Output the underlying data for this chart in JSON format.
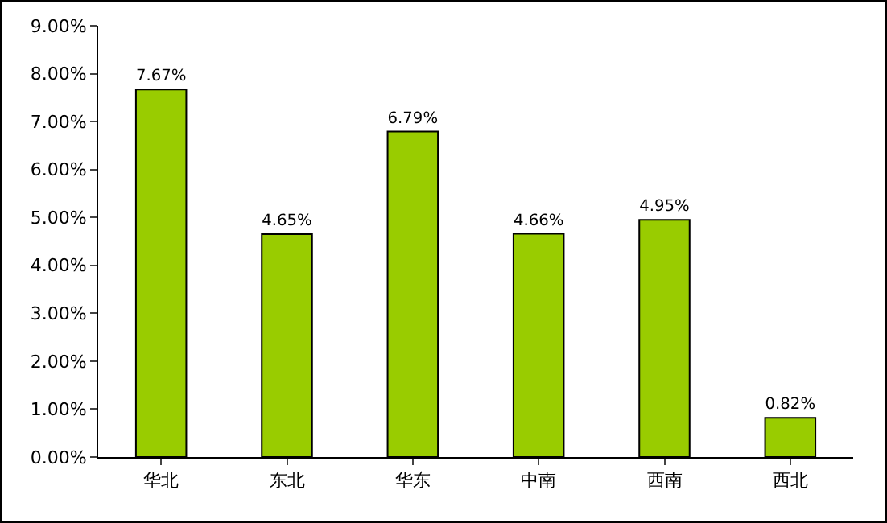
{
  "chart_data": {
    "type": "bar",
    "categories": [
      "华北",
      "东北",
      "华东",
      "中南",
      "西南",
      "西北"
    ],
    "values": [
      7.67,
      4.65,
      6.79,
      4.66,
      4.95,
      0.82
    ],
    "value_labels": [
      "7.67%",
      "4.65%",
      "6.79%",
      "4.66%",
      "4.95%",
      "0.82%"
    ],
    "color": "#99cc00",
    "ylim": [
      0,
      9
    ],
    "yticks": [
      {
        "value": 0,
        "label": "0.00%"
      },
      {
        "value": 1,
        "label": "1.00%"
      },
      {
        "value": 2,
        "label": "2.00%"
      },
      {
        "value": 3,
        "label": "3.00%"
      },
      {
        "value": 4,
        "label": "4.00%"
      },
      {
        "value": 5,
        "label": "5.00%"
      },
      {
        "value": 6,
        "label": "6.00%"
      },
      {
        "value": 7,
        "label": "7.00%"
      },
      {
        "value": 8,
        "label": "8.00%"
      },
      {
        "value": 9,
        "label": "9.00%"
      }
    ],
    "grid": false,
    "legend": false
  }
}
